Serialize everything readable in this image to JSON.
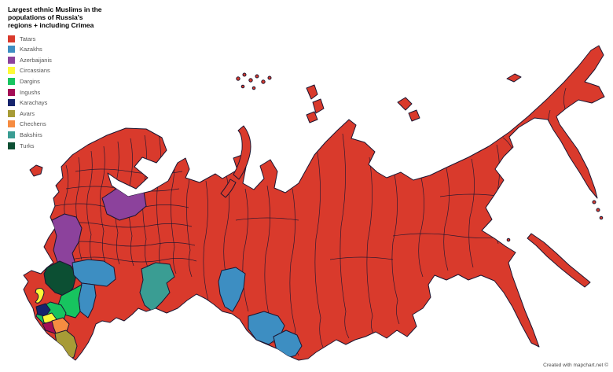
{
  "title": "Largest ethnic Muslims in the populations of Russia's regions + including Crimea",
  "attribution": "Created with mapchart.net ©",
  "colors": {
    "tatars": "#d93a2c",
    "kazakhs": "#3d8ec2",
    "azerbaijanis": "#8c429c",
    "circassians": "#fdf937",
    "dargins": "#17c45f",
    "ingushs": "#a40d55",
    "karachays": "#16246d",
    "avars": "#a79b36",
    "chechens": "#f68c41",
    "bakshirs": "#3a9d93",
    "turks": "#0c4f33",
    "border": "#1c1530",
    "sea": "#ffffff"
  },
  "legend": {
    "items": [
      {
        "key": "tatars",
        "label": "Tatars"
      },
      {
        "key": "kazakhs",
        "label": "Kazakhs"
      },
      {
        "key": "azerbaijanis",
        "label": "Azerbaijanis"
      },
      {
        "key": "circassians",
        "label": "Circassians"
      },
      {
        "key": "dargins",
        "label": "Dargins"
      },
      {
        "key": "ingushs",
        "label": "Ingushs"
      },
      {
        "key": "karachays",
        "label": "Karachays"
      },
      {
        "key": "avars",
        "label": "Avars"
      },
      {
        "key": "chechens",
        "label": "Chechens"
      },
      {
        "key": "bakshirs",
        "label": "Bakshirs"
      },
      {
        "key": "turks",
        "label": "Turks"
      }
    ]
  }
}
